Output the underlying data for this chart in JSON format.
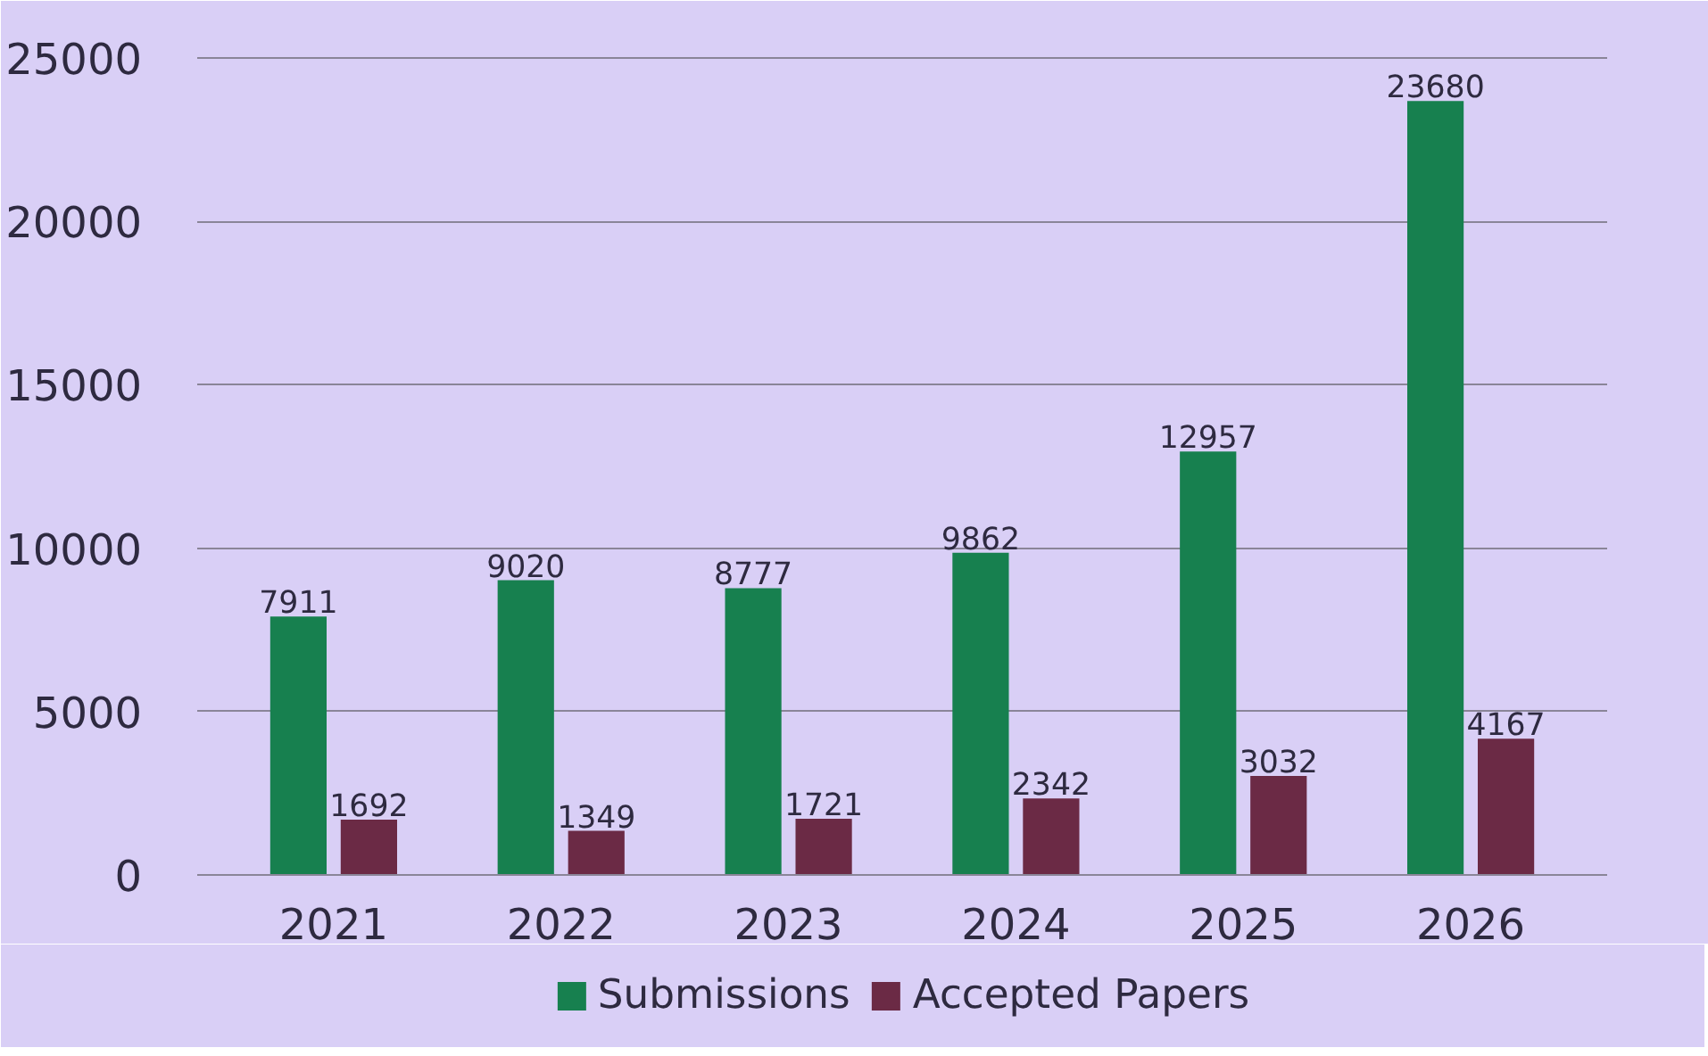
{
  "chart_data": {
    "type": "bar",
    "categories": [
      "2021",
      "2022",
      "2023",
      "2024",
      "2025",
      "2026"
    ],
    "series": [
      {
        "name": "Submissions",
        "color": "#17804f",
        "values": [
          7911,
          9020,
          8777,
          9862,
          12957,
          23680
        ]
      },
      {
        "name": "Accepted Papers",
        "color": "#6b2a45",
        "values": [
          1692,
          1349,
          1721,
          2342,
          3032,
          4167
        ]
      }
    ],
    "ylim": [
      0,
      25000
    ],
    "yticks": [
      0,
      5000,
      10000,
      15000,
      20000,
      25000
    ],
    "grid": "y",
    "legend": "bottom",
    "data_labels": true
  }
}
